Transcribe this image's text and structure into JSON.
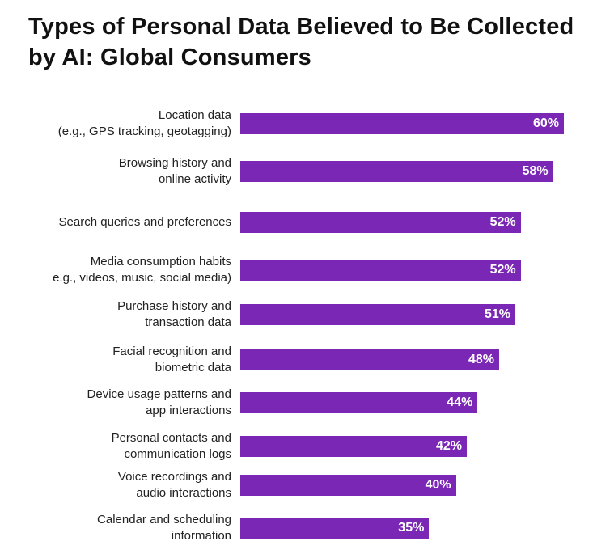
{
  "chart_data": {
    "type": "bar",
    "orientation": "horizontal",
    "title": "Types of Personal Data Believed to Be Collected by AI: Global Consumers",
    "categories": [
      [
        "Location data",
        "(e.g., GPS tracking, geotagging)"
      ],
      [
        "Browsing history and",
        "online activity"
      ],
      [
        "Search queries and preferences"
      ],
      [
        "Media consumption habits",
        "e.g., videos, music, social media)"
      ],
      [
        "Purchase history and",
        "transaction data"
      ],
      [
        "Facial recognition and",
        "biometric data"
      ],
      [
        "Device usage patterns and",
        "app interactions"
      ],
      [
        "Personal contacts and",
        "communication logs"
      ],
      [
        "Voice recordings and",
        "audio interactions"
      ],
      [
        "Calendar and scheduling",
        "information"
      ]
    ],
    "values": [
      60,
      58,
      52,
      52,
      51,
      48,
      44,
      42,
      40,
      35
    ],
    "data_labels": [
      "60%",
      "58%",
      "52%",
      "52%",
      "51%",
      "48%",
      "44%",
      "42%",
      "40%",
      "35%"
    ],
    "bar_color": "#7B27B5",
    "grid": false,
    "legend": "none"
  }
}
